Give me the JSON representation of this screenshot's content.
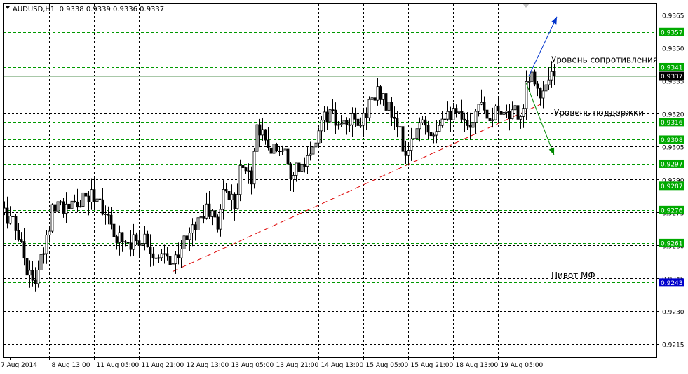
{
  "header": {
    "symbol_line": "AUDUSD,H1  0.9338 0.9339 0.9336 0.9337"
  },
  "colors": {
    "background": "#ffffff",
    "frame": "#000000",
    "grid": "#000000",
    "level_line": "#009900",
    "level_label_bg": "#00aa00",
    "pivot_label_bg": "#0000cc",
    "current_label_bg": "#000000",
    "candle": "#000000",
    "trendline": "#dd0000",
    "arrow_up": "#0033cc",
    "arrow_down": "#008800"
  },
  "chart_data": {
    "type": "candlestick",
    "instrument": "AUDUSD",
    "timeframe": "H1",
    "ohlc_header": {
      "open": 0.9338,
      "high": 0.9339,
      "low": 0.9336,
      "close": 0.9337
    },
    "ylim": [
      0.9209,
      0.937
    ],
    "y_ticks": [
      "0.9365",
      "0.9350",
      "0.9335",
      "0.9320",
      "0.9305",
      "0.9290",
      "0.9275",
      "0.9260",
      "0.9245",
      "0.9230",
      "0.9215"
    ],
    "x_ticks": [
      {
        "bar": 2,
        "label": "7 Aug 2014"
      },
      {
        "bar": 16,
        "label": "8 Aug 13:00"
      },
      {
        "bar": 32,
        "label": "11 Aug 05:00"
      },
      {
        "bar": 48,
        "label": "11 Aug 21:00"
      },
      {
        "bar": 64,
        "label": "12 Aug 13:00"
      },
      {
        "bar": 80,
        "label": "13 Aug 05:00"
      },
      {
        "bar": 96,
        "label": "13 Aug 21:00"
      },
      {
        "bar": 112,
        "label": "14 Aug 13:00"
      },
      {
        "bar": 128,
        "label": "15 Aug 05:00"
      },
      {
        "bar": 144,
        "label": "15 Aug 21:00"
      },
      {
        "bar": 160,
        "label": "18 Aug 13:00"
      },
      {
        "bar": 176,
        "label": "19 Aug 05:00"
      }
    ],
    "levels": [
      {
        "price": 0.9357,
        "label": "0.9357",
        "kind": "level"
      },
      {
        "price": 0.9341,
        "label": "0.9341",
        "kind": "level"
      },
      {
        "price": 0.9337,
        "label": "0.9337",
        "kind": "current"
      },
      {
        "price": 0.9316,
        "label": "0.9316",
        "kind": "level"
      },
      {
        "price": 0.9308,
        "label": "0.9308",
        "kind": "level"
      },
      {
        "price": 0.9297,
        "label": "0.9297",
        "kind": "level"
      },
      {
        "price": 0.9287,
        "label": "0.9287",
        "kind": "level"
      },
      {
        "price": 0.9276,
        "label": "0.9276",
        "kind": "level"
      },
      {
        "price": 0.9261,
        "label": "0.9261",
        "kind": "level"
      },
      {
        "price": 0.9243,
        "label": "0.9243",
        "kind": "pivot"
      }
    ],
    "annotations": [
      {
        "text": "Уровень сопротивления",
        "price": 0.9343,
        "bar": 195
      },
      {
        "text": "Уровень поддержки",
        "price": 0.9319,
        "bar": 196
      },
      {
        "text": "Пивот МФ",
        "price": 0.9245,
        "bar": 195
      }
    ],
    "trendline": {
      "from": {
        "bar": 60,
        "price": 0.9248
      },
      "to": {
        "bar": 191,
        "price": 0.9324
      }
    },
    "arrows": [
      {
        "name": "arrow-up",
        "from": {
          "bar": 187,
          "price": 0.9337
        },
        "to": {
          "bar": 197,
          "price": 0.9364
        }
      },
      {
        "name": "arrow-down",
        "from": {
          "bar": 186,
          "price": 0.9334
        },
        "to": {
          "bar": 196,
          "price": 0.9301
        }
      }
    ],
    "close_path": [
      [
        0,
        0.9275
      ],
      [
        2,
        0.9272
      ],
      [
        5,
        0.9265
      ],
      [
        8,
        0.925
      ],
      [
        10,
        0.9243
      ],
      [
        12,
        0.9247
      ],
      [
        15,
        0.9262
      ],
      [
        17,
        0.9278
      ],
      [
        19,
        0.9281
      ],
      [
        22,
        0.9276
      ],
      [
        25,
        0.9278
      ],
      [
        28,
        0.928
      ],
      [
        31,
        0.9283
      ],
      [
        34,
        0.9281
      ],
      [
        36,
        0.9275
      ],
      [
        38,
        0.9266
      ],
      [
        41,
        0.9264
      ],
      [
        44,
        0.9262
      ],
      [
        47,
        0.9262
      ],
      [
        50,
        0.9264
      ],
      [
        53,
        0.9257
      ],
      [
        55,
        0.9252
      ],
      [
        57,
        0.9255
      ],
      [
        60,
        0.925
      ],
      [
        62,
        0.9258
      ],
      [
        64,
        0.9262
      ],
      [
        66,
        0.9264
      ],
      [
        68,
        0.927
      ],
      [
        70,
        0.9273
      ],
      [
        72,
        0.9276
      ],
      [
        74,
        0.9274
      ],
      [
        76,
        0.9268
      ],
      [
        78,
        0.9286
      ],
      [
        80,
        0.9283
      ],
      [
        82,
        0.928
      ],
      [
        84,
        0.9294
      ],
      [
        86,
        0.9295
      ],
      [
        88,
        0.929
      ],
      [
        90,
        0.9316
      ],
      [
        92,
        0.931
      ],
      [
        94,
        0.9303
      ],
      [
        96,
        0.9305
      ],
      [
        98,
        0.9304
      ],
      [
        100,
        0.9306
      ],
      [
        102,
        0.9294
      ],
      [
        104,
        0.9296
      ],
      [
        106,
        0.9294
      ],
      [
        108,
        0.9298
      ],
      [
        110,
        0.9302
      ],
      [
        112,
        0.9314
      ],
      [
        114,
        0.9318
      ],
      [
        116,
        0.932
      ],
      [
        118,
        0.9316
      ],
      [
        120,
        0.9312
      ],
      [
        122,
        0.9315
      ],
      [
        124,
        0.9316
      ],
      [
        126,
        0.9314
      ],
      [
        128,
        0.9318
      ],
      [
        130,
        0.9325
      ],
      [
        132,
        0.9327
      ],
      [
        134,
        0.933
      ],
      [
        136,
        0.9324
      ],
      [
        138,
        0.9319
      ],
      [
        140,
        0.9315
      ],
      [
        142,
        0.9305
      ],
      [
        144,
        0.93
      ],
      [
        146,
        0.931
      ],
      [
        148,
        0.9318
      ],
      [
        150,
        0.9317
      ],
      [
        152,
        0.9313
      ],
      [
        154,
        0.9314
      ],
      [
        156,
        0.932
      ],
      [
        158,
        0.9322
      ],
      [
        160,
        0.9319
      ],
      [
        162,
        0.9318
      ],
      [
        164,
        0.9314
      ],
      [
        166,
        0.9317
      ],
      [
        168,
        0.9319
      ],
      [
        170,
        0.9328
      ],
      [
        172,
        0.932
      ],
      [
        174,
        0.932
      ],
      [
        176,
        0.9322
      ],
      [
        178,
        0.9323
      ],
      [
        180,
        0.9318
      ],
      [
        182,
        0.932
      ],
      [
        184,
        0.9316
      ],
      [
        186,
        0.9336
      ],
      [
        188,
        0.9338
      ],
      [
        190,
        0.9335
      ],
      [
        191,
        0.9326
      ],
      [
        193,
        0.9332
      ],
      [
        195,
        0.9336
      ],
      [
        196,
        0.9337
      ]
    ]
  }
}
